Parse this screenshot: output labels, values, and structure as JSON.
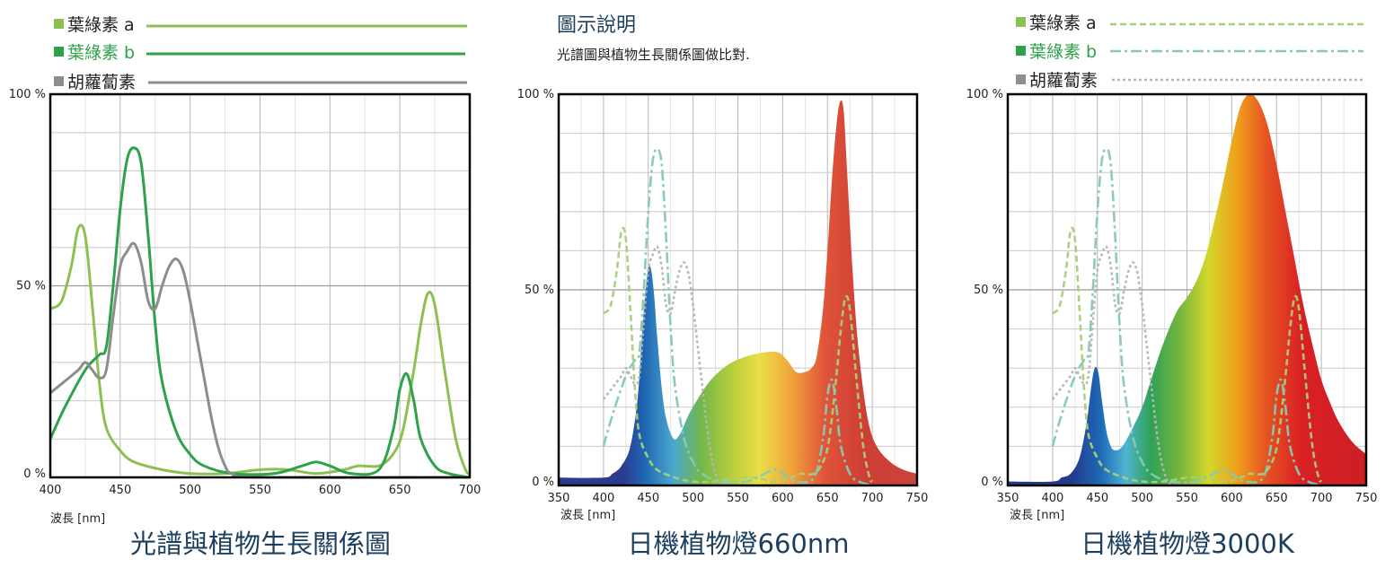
{
  "chart_data": [
    {
      "type": "line",
      "title": "光譜與植物生長關係圖",
      "xlabel": "波長 [nm]",
      "ylabel": "",
      "xlim": [
        400,
        700
      ],
      "ylim": [
        0,
        100
      ],
      "x_ticks": [
        "400",
        "450",
        "500",
        "550",
        "600",
        "650",
        "700"
      ],
      "y_ticks": [
        "0 %",
        "50 %",
        "100 %"
      ],
      "grid": true,
      "legend_position": "top-left",
      "series": [
        {
          "name": "葉綠素 a",
          "color": "#8cc152",
          "points": [
            [
              400,
              44
            ],
            [
              408,
              46
            ],
            [
              415,
              55
            ],
            [
              420,
              65
            ],
            [
              425,
              63
            ],
            [
              430,
              45
            ],
            [
              435,
              25
            ],
            [
              440,
              13
            ],
            [
              450,
              7
            ],
            [
              460,
              4
            ],
            [
              480,
              2
            ],
            [
              500,
              1
            ],
            [
              525,
              1
            ],
            [
              550,
              2
            ],
            [
              570,
              2
            ],
            [
              590,
              1
            ],
            [
              610,
              2
            ],
            [
              620,
              3
            ],
            [
              635,
              3
            ],
            [
              645,
              6
            ],
            [
              652,
              12
            ],
            [
              660,
              28
            ],
            [
              665,
              40
            ],
            [
              670,
              48
            ],
            [
              675,
              45
            ],
            [
              682,
              28
            ],
            [
              690,
              10
            ],
            [
              697,
              2
            ],
            [
              700,
              1
            ]
          ]
        },
        {
          "name": "葉綠素 b",
          "color": "#2ea24a",
          "points": [
            [
              400,
              10
            ],
            [
              410,
              18
            ],
            [
              425,
              28
            ],
            [
              435,
              32
            ],
            [
              440,
              34
            ],
            [
              445,
              50
            ],
            [
              450,
              70
            ],
            [
              455,
              83
            ],
            [
              460,
              86
            ],
            [
              465,
              82
            ],
            [
              470,
              63
            ],
            [
              475,
              40
            ],
            [
              480,
              25
            ],
            [
              490,
              12
            ],
            [
              500,
              6
            ],
            [
              510,
              3
            ],
            [
              530,
              1
            ],
            [
              560,
              1
            ],
            [
              580,
              3
            ],
            [
              590,
              4
            ],
            [
              600,
              3
            ],
            [
              615,
              1
            ],
            [
              635,
              2
            ],
            [
              645,
              12
            ],
            [
              650,
              23
            ],
            [
              655,
              27
            ],
            [
              660,
              20
            ],
            [
              665,
              10
            ],
            [
              675,
              3
            ],
            [
              685,
              1
            ],
            [
              700,
              0
            ]
          ]
        },
        {
          "name": "胡蘿蔔素",
          "color": "#8d8d8d",
          "points": [
            [
              400,
              22
            ],
            [
              410,
              25
            ],
            [
              420,
              28
            ],
            [
              425,
              30
            ],
            [
              430,
              28
            ],
            [
              435,
              26
            ],
            [
              440,
              28
            ],
            [
              445,
              42
            ],
            [
              450,
              55
            ],
            [
              455,
              59
            ],
            [
              460,
              61
            ],
            [
              465,
              56
            ],
            [
              470,
              46
            ],
            [
              475,
              44
            ],
            [
              480,
              50
            ],
            [
              485,
              55
            ],
            [
              490,
              57
            ],
            [
              495,
              54
            ],
            [
              500,
              46
            ],
            [
              505,
              36
            ],
            [
              510,
              26
            ],
            [
              515,
              16
            ],
            [
              520,
              8
            ],
            [
              525,
              3
            ],
            [
              530,
              1
            ],
            [
              550,
              0
            ],
            [
              700,
              0
            ]
          ]
        }
      ]
    },
    {
      "type": "area",
      "title": "日機植物燈660nm",
      "xlabel": "波長 [nm]",
      "ylabel": "",
      "xlim": [
        350,
        750
      ],
      "ylim": [
        0,
        100
      ],
      "x_ticks": [
        "350",
        "400",
        "450",
        "500",
        "550",
        "600",
        "650",
        "700",
        "750"
      ],
      "y_ticks": [
        "0 %",
        "50 %",
        "100 %"
      ],
      "grid": true,
      "series": [
        {
          "name": "",
          "color": "spectrum",
          "points": [
            [
              350,
              2
            ],
            [
              400,
              2
            ],
            [
              410,
              3
            ],
            [
              420,
              5
            ],
            [
              430,
              10
            ],
            [
              438,
              22
            ],
            [
              443,
              38
            ],
            [
              448,
              52
            ],
            [
              452,
              56
            ],
            [
              456,
              50
            ],
            [
              460,
              38
            ],
            [
              465,
              25
            ],
            [
              470,
              17
            ],
            [
              478,
              12
            ],
            [
              485,
              13
            ],
            [
              495,
              18
            ],
            [
              505,
              22
            ],
            [
              520,
              27
            ],
            [
              540,
              31
            ],
            [
              560,
              33
            ],
            [
              580,
              34
            ],
            [
              595,
              34
            ],
            [
              605,
              32
            ],
            [
              615,
              29
            ],
            [
              625,
              29
            ],
            [
              632,
              30
            ],
            [
              638,
              33
            ],
            [
              645,
              45
            ],
            [
              650,
              60
            ],
            [
              655,
              78
            ],
            [
              660,
              92
            ],
            [
              664,
              98
            ],
            [
              668,
              96
            ],
            [
              672,
              80
            ],
            [
              678,
              55
            ],
            [
              685,
              34
            ],
            [
              695,
              17
            ],
            [
              705,
              10
            ],
            [
              720,
              6
            ],
            [
              735,
              4
            ],
            [
              750,
              3
            ]
          ]
        }
      ]
    },
    {
      "type": "area",
      "title": "日機植物燈3000K",
      "xlabel": "波長 [nm]",
      "ylabel": "",
      "xlim": [
        350,
        750
      ],
      "ylim": [
        0,
        100
      ],
      "x_ticks": [
        "350",
        "400",
        "450",
        "500",
        "550",
        "600",
        "650",
        "700",
        "750"
      ],
      "y_ticks": [
        "0 %",
        "50 %",
        "100 %"
      ],
      "grid": true,
      "legend_position": "top",
      "legend": [
        {
          "name": "葉綠素 a",
          "color": "#a6cf7a",
          "dash": "dashed"
        },
        {
          "name": "葉綠素 b",
          "color": "#86c9b1",
          "dash": "dashdot"
        },
        {
          "name": "胡蘿蔔素",
          "color": "#b5b5b5",
          "dash": "dotted"
        }
      ],
      "series": [
        {
          "name": "",
          "color": "spectrum",
          "points": [
            [
              350,
              1
            ],
            [
              400,
              1
            ],
            [
              410,
              2
            ],
            [
              420,
              3
            ],
            [
              430,
              7
            ],
            [
              438,
              16
            ],
            [
              443,
              25
            ],
            [
              447,
              30
            ],
            [
              451,
              29
            ],
            [
              455,
              22
            ],
            [
              460,
              14
            ],
            [
              465,
              10
            ],
            [
              470,
              9
            ],
            [
              478,
              10
            ],
            [
              490,
              15
            ],
            [
              500,
              20
            ],
            [
              510,
              27
            ],
            [
              520,
              34
            ],
            [
              530,
              40
            ],
            [
              540,
              45
            ],
            [
              550,
              48
            ],
            [
              560,
              52
            ],
            [
              570,
              58
            ],
            [
              580,
              67
            ],
            [
              590,
              77
            ],
            [
              600,
              88
            ],
            [
              610,
              97
            ],
            [
              620,
              100
            ],
            [
              630,
              98
            ],
            [
              640,
              92
            ],
            [
              650,
              82
            ],
            [
              660,
              70
            ],
            [
              670,
              58
            ],
            [
              680,
              46
            ],
            [
              690,
              36
            ],
            [
              700,
              27
            ],
            [
              710,
              21
            ],
            [
              720,
              16
            ],
            [
              735,
              11
            ],
            [
              750,
              8
            ]
          ]
        }
      ]
    }
  ],
  "header": {
    "note_title": "圖示說明",
    "note_text": "光譜圖與植物生長關係圖做比對."
  }
}
